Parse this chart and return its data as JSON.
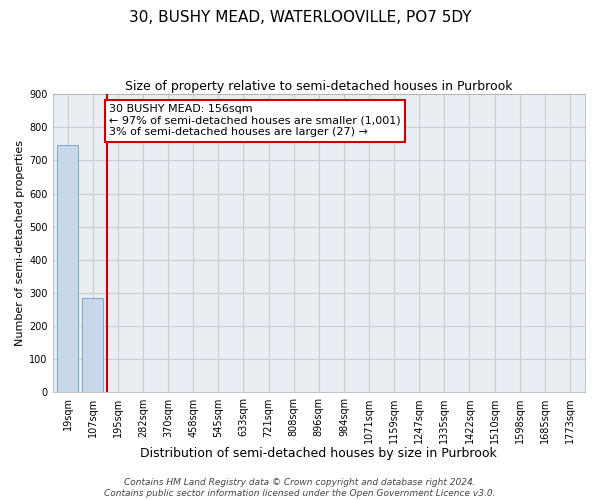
{
  "title": "30, BUSHY MEAD, WATERLOOVILLE, PO7 5DY",
  "subtitle": "Size of property relative to semi-detached houses in Purbrook",
  "xlabel": "Distribution of semi-detached houses by size in Purbrook",
  "ylabel": "Number of semi-detached properties",
  "categories": [
    "19sqm",
    "107sqm",
    "195sqm",
    "282sqm",
    "370sqm",
    "458sqm",
    "545sqm",
    "633sqm",
    "721sqm",
    "808sqm",
    "896sqm",
    "984sqm",
    "1071sqm",
    "1159sqm",
    "1247sqm",
    "1335sqm",
    "1422sqm",
    "1510sqm",
    "1598sqm",
    "1685sqm",
    "1773sqm"
  ],
  "values": [
    748,
    285,
    0,
    0,
    0,
    0,
    0,
    0,
    0,
    0,
    0,
    0,
    0,
    0,
    0,
    0,
    0,
    0,
    0,
    0,
    0
  ],
  "bar_color": "#c8d8e8",
  "bar_edge_color": "#7aa8c8",
  "property_line_color": "#cc0000",
  "annotation_text": "30 BUSHY MEAD: 156sqm\n← 97% of semi-detached houses are smaller (1,001)\n3% of semi-detached houses are larger (27) →",
  "annotation_box_color": "#ffffff",
  "annotation_box_edge_color": "#cc0000",
  "ylim": [
    0,
    900
  ],
  "yticks": [
    0,
    100,
    200,
    300,
    400,
    500,
    600,
    700,
    800,
    900
  ],
  "grid_color": "#cccccc",
  "bg_color": "#e8eef4",
  "footer_text": "Contains HM Land Registry data © Crown copyright and database right 2024.\nContains public sector information licensed under the Open Government Licence v3.0.",
  "title_fontsize": 11,
  "subtitle_fontsize": 9,
  "xlabel_fontsize": 9,
  "ylabel_fontsize": 8,
  "tick_fontsize": 7,
  "annotation_fontsize": 8,
  "footer_fontsize": 6.5
}
